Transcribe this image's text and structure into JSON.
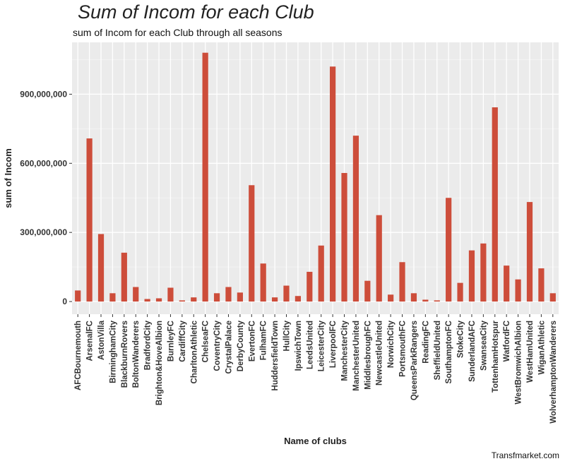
{
  "caption": "Transfmarket.com",
  "chart_data": {
    "type": "bar",
    "title": "Sum of Incom for each Club",
    "subtitle": "sum of Incom for each Club through all seasons",
    "xlabel": "Name of clubs",
    "ylabel": "sum of Incom",
    "ylim": [
      -55000000,
      1125000000
    ],
    "yticks": [
      0,
      300000000,
      600000000,
      900000000
    ],
    "ytick_labels": [
      "0",
      "300,000,000",
      "600,000,000",
      "900,000,000"
    ],
    "grid": true,
    "bar_color": "#cd4d3a",
    "panel_color": "#ebebeb",
    "categories": [
      "AFCBournemouth",
      "ArsenalFC",
      "AstonVilla",
      "BirminghamCity",
      "BlackburnRovers",
      "BoltonWanderers",
      "BradfordCity",
      "Brighton&HoveAlbion",
      "BurnleyFC",
      "CardiffCity",
      "CharltonAthletic",
      "ChelseaFC",
      "CoventryCity",
      "CrystalPalace",
      "DerbyCounty",
      "EvertonFC",
      "FulhamFC",
      "HuddersfieldTown",
      "HullCity",
      "IpswichTown",
      "LeedsUnited",
      "LeicesterCity",
      "LiverpoolFC",
      "ManchesterCity",
      "ManchesterUnited",
      "MiddlesbroughFC",
      "NewcastleUnited",
      "NorwichCity",
      "PortsmouthFC",
      "QueensParkRangers",
      "ReadingFC",
      "SheffieldUnited",
      "SouthamptonFC",
      "StokeCity",
      "SunderlandAFC",
      "SwanseaCity",
      "TottenhamHotspur",
      "WatfordFC",
      "WestBromwichAlbion",
      "WestHamUnited",
      "WiganAthletic",
      "WolverhamptonWanderers"
    ],
    "values": [
      48000000,
      708000000,
      293000000,
      36000000,
      212000000,
      63000000,
      11000000,
      14000000,
      60000000,
      5000000,
      18000000,
      1080000000,
      36000000,
      63000000,
      39000000,
      505000000,
      165000000,
      18000000,
      69000000,
      24000000,
      129000000,
      243000000,
      1020000000,
      558000000,
      720000000,
      90000000,
      375000000,
      30000000,
      171000000,
      36000000,
      8000000,
      5000000,
      450000000,
      81000000,
      222000000,
      252000000,
      843000000,
      156000000,
      96000000,
      432000000,
      144000000,
      36000000
    ]
  }
}
